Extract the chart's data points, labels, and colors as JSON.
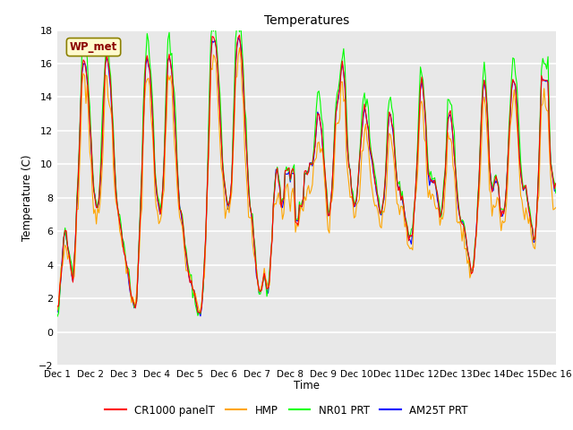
{
  "title": "Temperatures",
  "ylabel": "Temperature (C)",
  "xlabel": "Time",
  "ylim": [
    -2,
    18
  ],
  "annotation_text": "WP_met",
  "annotation_color": "#8B0000",
  "annotation_bg": "#FFFACD",
  "plot_bg": "#E8E8E8",
  "grid_color": "white",
  "series_colors": [
    "red",
    "orange",
    "lime",
    "blue"
  ],
  "series_labels": [
    "CR1000 panelT",
    "HMP",
    "NR01 PRT",
    "AM25T PRT"
  ],
  "x_tick_labels": [
    "Dec 1",
    "Dec 2",
    "Dec 3",
    "Dec 4",
    "Dec 5",
    "Dec 6",
    "Dec 7",
    "Dec 8",
    "Dec 9",
    "Dec 10",
    "Dec 11",
    "Dec 12",
    "Dec 13",
    "Dec 14",
    "Dec 15",
    "Dec 16"
  ],
  "base_temps": [
    1.2,
    1.5,
    2.5,
    3.5,
    4.5,
    5.5,
    6.0,
    5.5,
    5.0,
    4.5,
    4.0,
    3.5,
    3.0,
    4.0,
    5.5,
    7.5,
    9.0,
    11.0,
    13.5,
    15.5,
    16.0,
    16.0,
    15.5,
    15.0,
    14.0,
    12.5,
    11.0,
    9.5,
    8.5,
    8.0,
    7.5,
    7.5,
    8.0,
    9.0,
    10.5,
    12.5,
    14.5,
    16.0,
    16.5,
    16.0,
    15.5,
    14.5,
    13.0,
    11.5,
    10.0,
    8.5,
    7.5,
    7.0,
    6.5,
    6.0,
    5.5,
    5.0,
    4.5,
    4.0,
    3.5,
    3.0,
    2.5,
    2.0,
    1.8,
    1.5,
    1.5,
    2.0,
    3.5,
    5.5,
    7.5,
    9.5,
    12.0,
    14.5,
    16.0,
    16.5,
    16.0,
    15.5,
    14.5,
    13.0,
    11.5,
    9.5,
    8.5,
    8.0,
    7.5,
    7.0,
    7.5,
    8.5,
    10.0,
    12.0,
    14.5,
    16.0,
    16.5,
    16.0,
    15.5,
    14.5,
    13.0,
    11.5,
    10.0,
    8.5,
    7.5,
    7.0,
    6.5,
    6.0,
    5.0,
    4.5,
    4.0,
    3.5,
    3.0,
    3.0,
    2.5,
    2.5,
    2.0,
    1.5,
    1.2,
    1.0,
    1.0,
    1.5,
    2.5,
    4.0,
    5.5,
    8.0,
    10.5,
    13.5,
    16.5,
    17.5,
    17.5,
    17.5,
    17.0,
    16.0,
    14.5,
    13.0,
    11.5,
    10.0,
    9.0,
    8.5,
    8.0,
    7.5,
    7.5,
    8.0,
    9.0,
    11.0,
    13.5,
    16.0,
    17.0,
    17.5,
    17.5,
    17.0,
    16.0,
    14.5,
    13.0,
    11.5,
    10.0,
    8.5,
    7.5,
    7.0,
    6.5,
    5.5,
    4.5,
    3.5,
    3.0,
    2.5,
    2.5,
    2.5,
    3.0,
    3.5,
    3.0,
    2.5,
    2.5,
    3.0,
    4.5,
    5.5,
    7.5,
    8.5,
    9.5,
    9.5,
    9.0,
    8.5,
    7.5,
    7.5,
    8.0,
    9.5,
    9.5,
    9.5,
    9.5,
    9.0,
    9.5,
    9.5,
    9.5,
    6.5,
    6.5,
    6.5,
    7.5,
    7.5,
    7.5,
    8.0,
    9.5,
    9.5,
    9.5,
    9.5,
    10.0,
    10.0,
    10.0,
    10.5,
    11.0,
    12.0,
    13.0,
    13.0,
    12.5,
    12.0,
    11.0,
    10.0,
    9.0,
    8.0,
    7.0,
    7.0,
    7.5,
    8.5,
    10.0,
    11.5,
    13.0,
    13.5,
    14.0,
    14.5,
    15.5,
    16.0,
    15.5,
    14.5,
    12.5,
    11.0,
    10.0,
    9.5,
    8.5,
    8.0,
    7.5,
    7.5,
    8.0,
    9.0,
    10.0,
    11.0,
    12.0,
    13.0,
    13.5,
    13.0,
    12.5,
    12.0,
    11.0,
    10.5,
    10.0,
    9.5,
    9.0,
    8.5,
    8.0,
    7.5,
    7.0,
    7.0,
    7.5,
    8.0,
    9.0,
    10.5,
    12.0,
    13.0,
    13.0,
    12.5,
    12.0,
    11.0,
    10.0,
    9.0,
    8.5,
    8.5,
    8.0,
    8.0,
    7.5,
    7.0,
    6.5,
    6.0,
    5.5,
    5.5,
    5.5,
    6.0,
    7.0,
    8.0,
    9.5,
    11.0,
    13.0,
    14.5,
    15.0,
    14.5,
    13.5,
    12.5,
    10.5,
    9.5,
    9.0,
    9.0,
    9.0,
    9.0,
    9.0,
    8.5,
    8.0,
    7.5,
    7.0,
    7.0,
    7.5,
    8.5,
    9.5,
    11.0,
    12.5,
    13.0,
    13.0,
    12.5,
    11.5,
    10.5,
    9.5,
    8.5,
    7.5,
    7.0,
    6.5,
    6.5,
    6.5,
    6.0,
    5.5,
    5.0,
    4.5,
    4.0,
    3.5,
    3.5,
    4.0,
    5.0,
    6.0,
    7.5,
    9.0,
    11.0,
    13.0,
    14.5,
    15.0,
    14.5,
    13.5,
    12.0,
    10.0,
    9.0,
    8.5,
    8.5,
    9.0,
    9.0,
    9.0,
    8.5,
    7.5,
    7.0,
    7.0,
    7.0,
    7.5,
    8.5,
    10.0,
    11.5,
    13.0,
    14.5,
    15.0,
    15.0,
    14.5,
    13.5,
    12.0,
    10.5,
    9.5,
    9.0,
    8.5,
    8.5,
    8.5,
    8.0,
    7.5,
    7.0,
    6.5,
    6.0,
    5.5,
    5.5,
    6.5,
    8.0,
    10.0,
    12.5,
    15.0,
    15.0,
    15.0,
    15.0,
    15.0,
    15.0,
    12.0,
    10.0,
    9.5,
    9.0,
    8.5,
    8.5
  ]
}
